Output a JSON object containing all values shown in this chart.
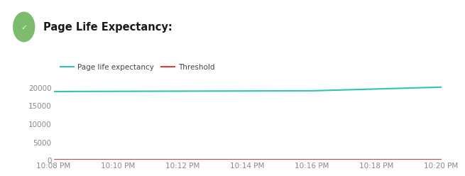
{
  "title": "Page Life Expectancy:",
  "title_fontsize": 10.5,
  "title_fontweight": "bold",
  "title_color": "#1a1a1a",
  "background_color": "#ffffff",
  "x_labels": [
    "10:08 PM",
    "10:10 PM",
    "10:12 PM",
    "10:14 PM",
    "10:16 PM",
    "10:18 PM",
    "10:20 PM"
  ],
  "x_values": [
    0,
    2,
    4,
    6,
    8,
    10,
    12
  ],
  "ple_values": [
    18800,
    18850,
    18900,
    18950,
    19000,
    19500,
    20000
  ],
  "threshold_values": [
    100,
    100,
    100,
    100,
    100,
    100,
    100
  ],
  "ple_color": "#2ec4b6",
  "threshold_color": "#e63946",
  "ylim": [
    0,
    22000
  ],
  "yticks": [
    0,
    5000,
    10000,
    15000,
    20000
  ],
  "legend_ple_label": "Page life expectancy",
  "legend_threshold_label": "Threshold",
  "tick_color": "#888888",
  "tick_fontsize": 7.5,
  "checkmark_color": "#7dbb6e",
  "line_width": 1.5
}
